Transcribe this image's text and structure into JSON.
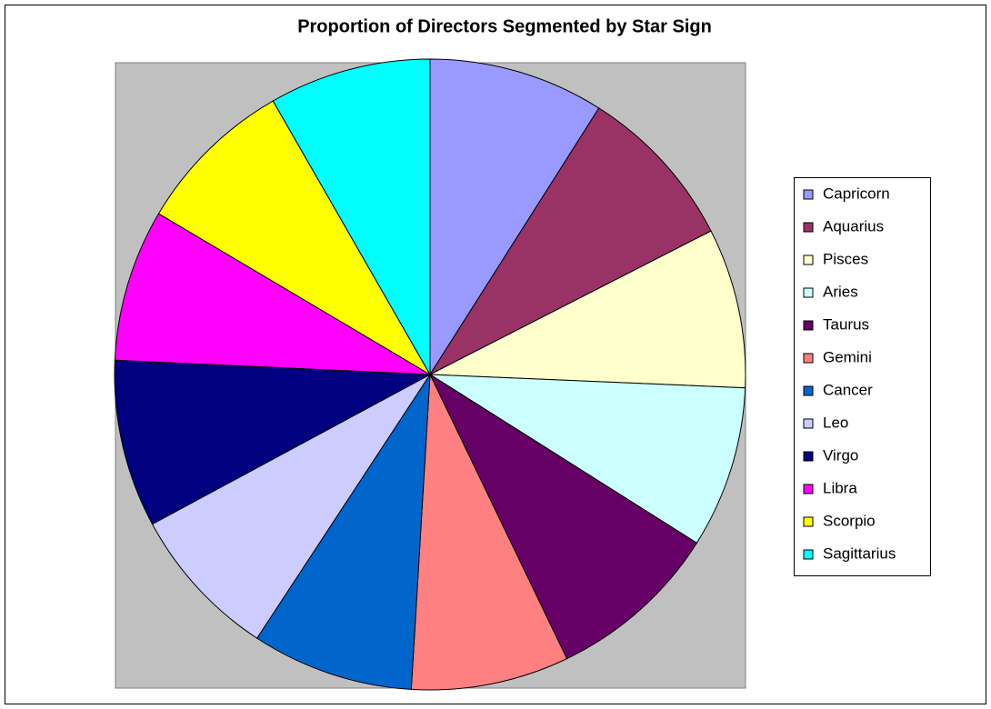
{
  "chart_data": {
    "type": "pie",
    "title": "Proportion of Directors Segmented by Star Sign",
    "categories": [
      "Capricorn",
      "Aquarius",
      "Pisces",
      "Aries",
      "Taurus",
      "Gemini",
      "Cancer",
      "Leo",
      "Virgo",
      "Libra",
      "Scorpio",
      "Sagittarius"
    ],
    "values": [
      9.0,
      8.5,
      8.2,
      8.3,
      8.9,
      8.1,
      8.3,
      7.9,
      8.6,
      7.8,
      8.2,
      8.3
    ],
    "colors": [
      "#9999FF",
      "#993366",
      "#FFFFCC",
      "#CCFFFF",
      "#660066",
      "#FF8080",
      "#0066CC",
      "#CCCCFF",
      "#000080",
      "#FF00FF",
      "#FFFF00",
      "#00FFFF"
    ],
    "legend": "right"
  }
}
